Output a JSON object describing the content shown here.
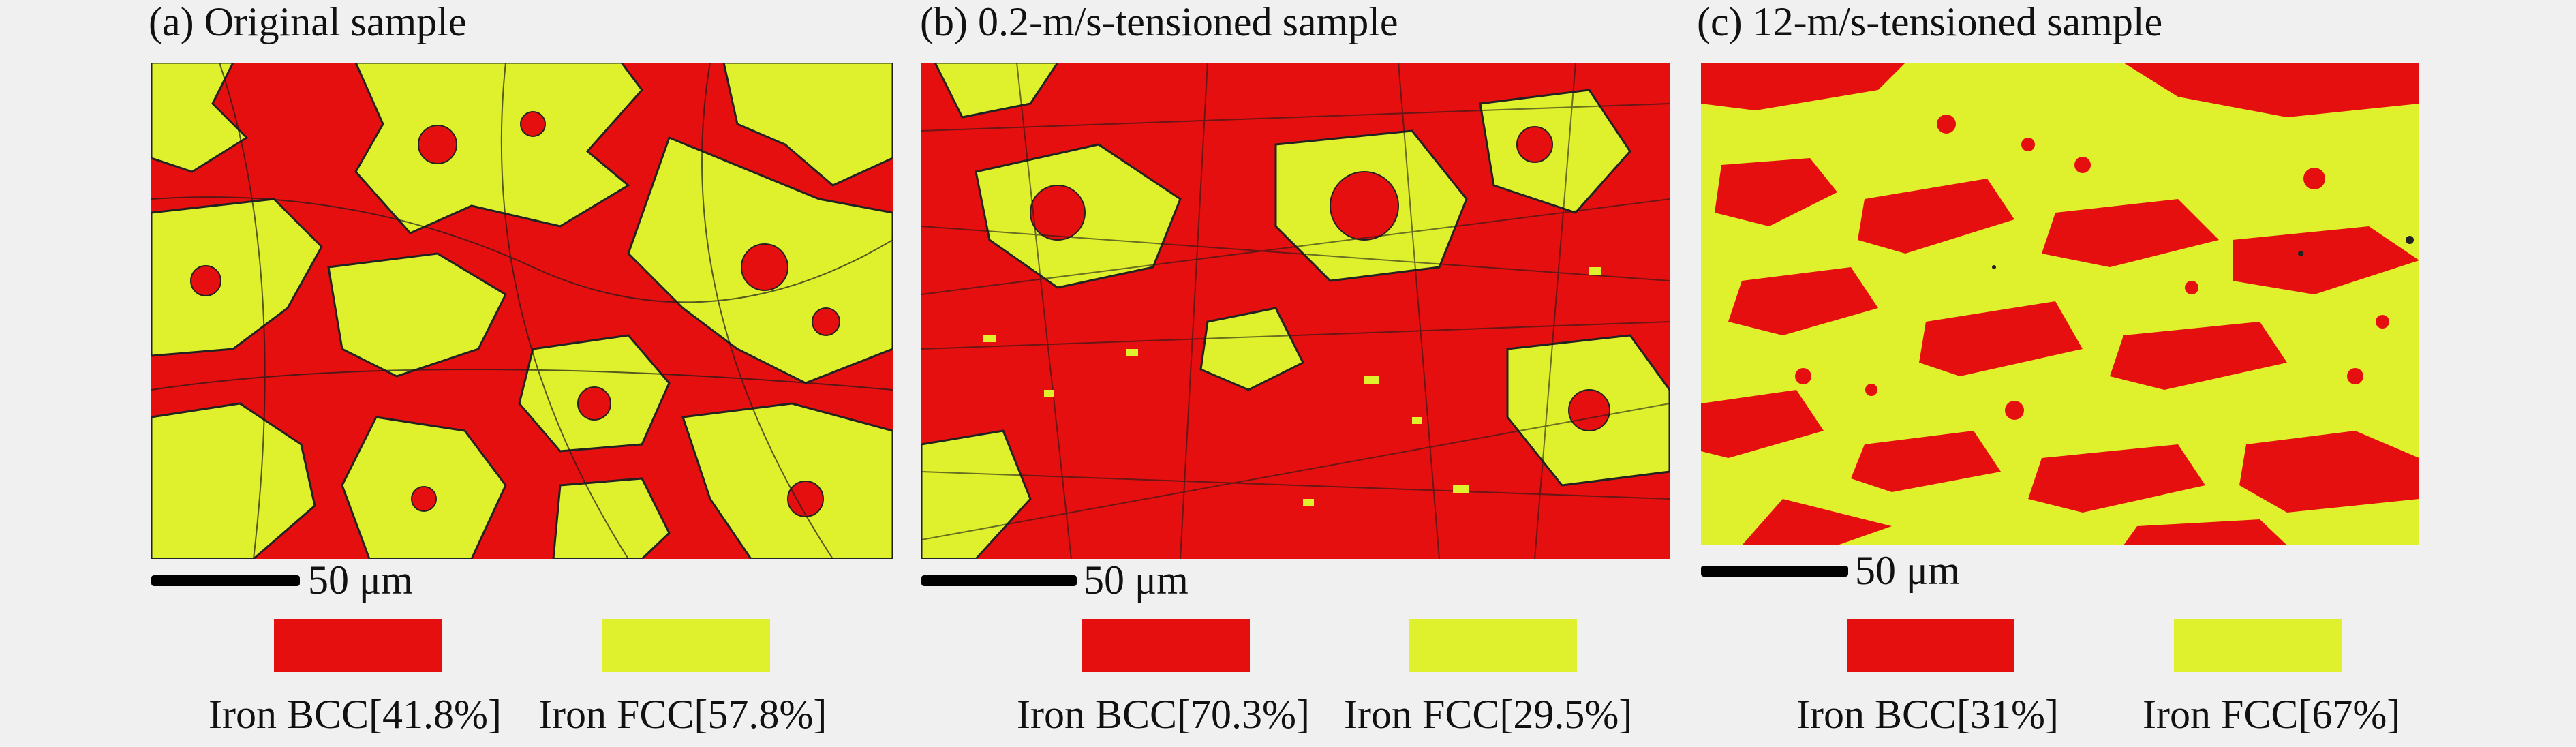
{
  "colors": {
    "bcc": "#e60f0f",
    "fcc": "#dff02c",
    "background": "#f0f0f0"
  },
  "panels": [
    {
      "title": "(a) Original sample",
      "scale_label": "50 μm",
      "legend": {
        "bcc_label": "Iron BCC[41.8%]",
        "fcc_label": "Iron FCC[57.8%]"
      }
    },
    {
      "title": "(b) 0.2-m/s-tensioned sample",
      "scale_label": "50 μm",
      "legend": {
        "bcc_label": "Iron BCC[70.3%]",
        "fcc_label": "Iron FCC[29.5%]"
      }
    },
    {
      "title": "(c) 12-m/s-tensioned sample",
      "scale_label": "50 μm",
      "legend": {
        "bcc_label": "Iron BCC[31%]",
        "fcc_label": "Iron FCC[67%]"
      }
    }
  ]
}
